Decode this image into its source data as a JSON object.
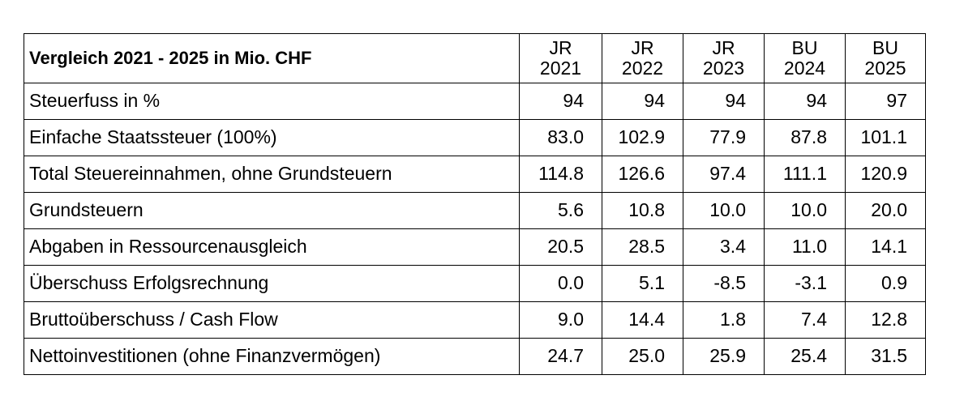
{
  "table": {
    "title": "Vergleich 2021 - 2025 in Mio. CHF",
    "columns": [
      {
        "type": "JR",
        "year": "2021"
      },
      {
        "type": "JR",
        "year": "2022"
      },
      {
        "type": "JR",
        "year": "2023"
      },
      {
        "type": "BU",
        "year": "2024"
      },
      {
        "type": "BU",
        "year": "2025"
      }
    ],
    "rows": [
      {
        "label": "Steuerfuss in %",
        "values": [
          "94",
          "94",
          "94",
          "94",
          "97"
        ]
      },
      {
        "label": "Einfache Staatssteuer (100%)",
        "values": [
          "83.0",
          "102.9",
          "77.9",
          "87.8",
          "101.1"
        ]
      },
      {
        "label": "Total Steuereinnahmen, ohne Grundsteuern",
        "values": [
          "114.8",
          "126.6",
          "97.4",
          "111.1",
          "120.9"
        ]
      },
      {
        "label": "Grundsteuern",
        "values": [
          "5.6",
          "10.8",
          "10.0",
          "10.0",
          "20.0"
        ]
      },
      {
        "label": "Abgaben in Ressourcenausgleich",
        "values": [
          "20.5",
          "28.5",
          "3.4",
          "11.0",
          "14.1"
        ]
      },
      {
        "label": "Überschuss Erfolgsrechnung",
        "values": [
          "0.0",
          "5.1",
          "-8.5",
          "-3.1",
          "0.9"
        ]
      },
      {
        "label": "Bruttoüberschuss / Cash Flow",
        "values": [
          "9.0",
          "14.4",
          "1.8",
          "7.4",
          "12.8"
        ]
      },
      {
        "label": "Nettoinvestitionen (ohne Finanzvermögen)",
        "values": [
          "24.7",
          "25.0",
          "25.9",
          "25.4",
          "31.5"
        ]
      }
    ]
  }
}
